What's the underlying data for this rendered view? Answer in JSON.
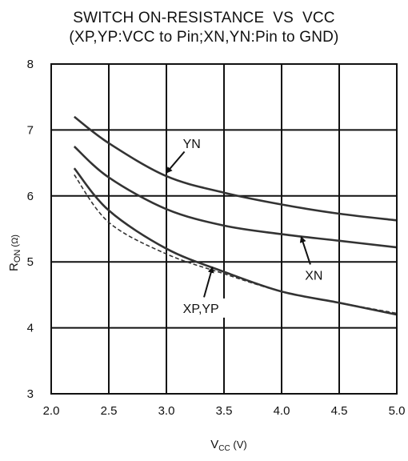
{
  "chart_data": {
    "type": "line",
    "title_lines": [
      "SWITCH ON-RESISTANCE  VS  VCC",
      "(XP,YP:VCC to Pin;XN,YN:Pin to GND)"
    ],
    "xlabel": {
      "main": "V",
      "sub": "CC",
      "unit": " (V)"
    },
    "ylabel": {
      "main": "R",
      "sub": "ON",
      "unit": " (Ω)"
    },
    "xlim": [
      2.0,
      5.0
    ],
    "ylim": [
      3,
      8
    ],
    "xticks": [
      "2.0",
      "2.5",
      "3.0",
      "3.5",
      "4.0",
      "4.5",
      "5.0"
    ],
    "yticks": [
      "3",
      "4",
      "5",
      "6",
      "7",
      "8"
    ],
    "grid": true,
    "series": [
      {
        "name": "YN",
        "color": "#333333",
        "dash": false,
        "x": [
          2.2,
          2.5,
          3.0,
          3.5,
          4.0,
          4.5,
          5.0
        ],
        "y": [
          7.2,
          6.8,
          6.3,
          6.05,
          5.87,
          5.73,
          5.63
        ]
      },
      {
        "name": "XN",
        "color": "#333333",
        "dash": false,
        "x": [
          2.2,
          2.5,
          3.0,
          3.5,
          4.0,
          4.5,
          5.0
        ],
        "y": [
          6.75,
          6.28,
          5.8,
          5.55,
          5.42,
          5.32,
          5.22
        ]
      },
      {
        "name": "XP",
        "color": "#333333",
        "dash": false,
        "x": [
          2.2,
          2.5,
          3.0,
          3.5,
          4.0,
          4.5,
          5.0
        ],
        "y": [
          6.42,
          5.78,
          5.2,
          4.85,
          4.55,
          4.38,
          4.2
        ]
      },
      {
        "name": "YP",
        "color": "#333333",
        "dash": true,
        "x": [
          2.2,
          2.5,
          3.0,
          3.5,
          4.0,
          4.5,
          5.0
        ],
        "y": [
          6.32,
          5.6,
          5.12,
          4.82,
          4.55,
          4.38,
          4.22
        ]
      }
    ],
    "annotations": [
      {
        "text": "YN",
        "label_x": 3.22,
        "label_y": 6.8,
        "arrow_x": 3.0,
        "arrow_y": 6.35
      },
      {
        "text": "XN",
        "label_x": 4.28,
        "label_y": 4.8,
        "arrow_x": 4.17,
        "arrow_y": 5.38
      },
      {
        "text": "XP,YP",
        "label_x": 3.3,
        "label_y": 4.3,
        "arrow_x": 3.4,
        "arrow_y": 4.92
      }
    ]
  }
}
